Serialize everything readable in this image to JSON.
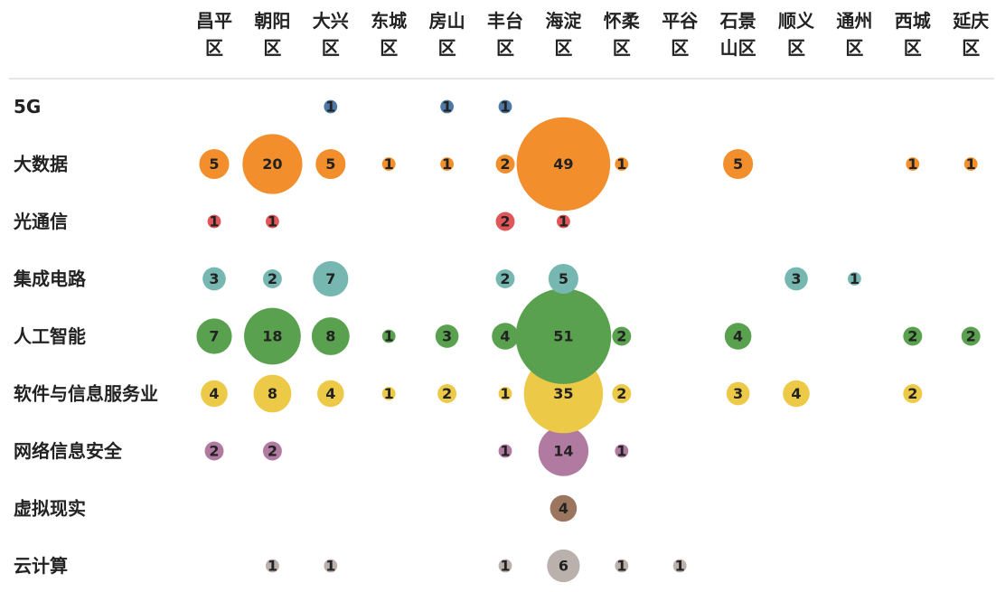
{
  "chart_data": {
    "type": "bubble",
    "categories": [
      "昌平区",
      "朝阳区",
      "大兴区",
      "东城区",
      "房山区",
      "丰台区",
      "海淀区",
      "怀柔区",
      "平谷区",
      "石景山区",
      "顺义区",
      "通州区",
      "西城区",
      "延庆区"
    ],
    "series": [
      {
        "name": "5G",
        "color": "#4e79a7",
        "values": [
          null,
          null,
          1,
          null,
          1,
          1,
          null,
          null,
          null,
          null,
          null,
          null,
          null,
          null
        ]
      },
      {
        "name": "大数据",
        "color": "#f28e2b",
        "values": [
          5,
          20,
          5,
          1,
          1,
          2,
          49,
          1,
          null,
          5,
          null,
          null,
          1,
          1
        ]
      },
      {
        "name": "光通信",
        "color": "#e15759",
        "values": [
          1,
          1,
          null,
          null,
          null,
          2,
          1,
          null,
          null,
          null,
          null,
          null,
          null,
          null
        ]
      },
      {
        "name": "集成电路",
        "color": "#76b7b2",
        "values": [
          3,
          2,
          7,
          null,
          null,
          2,
          5,
          null,
          null,
          null,
          3,
          1,
          null,
          null
        ]
      },
      {
        "name": "人工智能",
        "color": "#59a14f",
        "values": [
          7,
          18,
          8,
          1,
          3,
          4,
          51,
          2,
          null,
          4,
          null,
          null,
          2,
          2
        ]
      },
      {
        "name": "软件与信息服务业",
        "color": "#edc948",
        "values": [
          4,
          8,
          4,
          1,
          2,
          1,
          35,
          2,
          null,
          3,
          4,
          null,
          2,
          null
        ]
      },
      {
        "name": "网络信息安全",
        "color": "#b07aa1",
        "values": [
          2,
          2,
          null,
          null,
          null,
          1,
          14,
          1,
          null,
          null,
          null,
          null,
          null,
          null
        ]
      },
      {
        "name": "虚拟现实",
        "color": "#9c755f",
        "values": [
          null,
          null,
          null,
          null,
          null,
          null,
          4,
          null,
          null,
          null,
          null,
          null,
          null,
          null
        ]
      },
      {
        "name": "云计算",
        "color": "#bab0ac",
        "values": [
          null,
          1,
          1,
          null,
          null,
          1,
          6,
          1,
          1,
          null,
          null,
          null,
          null,
          null
        ]
      }
    ]
  }
}
